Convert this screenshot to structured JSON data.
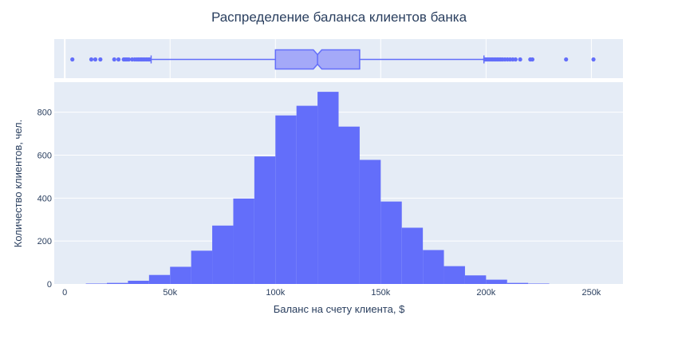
{
  "chart_data": {
    "type": "bar",
    "title": "Распределение баланса клиентов банка",
    "xlabel": "Баланс на счету клиента, $",
    "ylabel": "Количество клиентов, чел.",
    "xlim": [
      -5000,
      265000
    ],
    "ylim": [
      0,
      940
    ],
    "x_ticks": [
      {
        "value": 0,
        "label": "0"
      },
      {
        "value": 50000,
        "label": "50k"
      },
      {
        "value": 100000,
        "label": "100k"
      },
      {
        "value": 150000,
        "label": "150k"
      },
      {
        "value": 200000,
        "label": "200k"
      },
      {
        "value": 250000,
        "label": "250k"
      }
    ],
    "y_ticks": [
      {
        "value": 0,
        "label": "0"
      },
      {
        "value": 200,
        "label": "200"
      },
      {
        "value": 400,
        "label": "400"
      },
      {
        "value": 600,
        "label": "600"
      },
      {
        "value": 800,
        "label": "800"
      }
    ],
    "bin_width": 10000,
    "bins": [
      {
        "x0": 10000,
        "count": 2
      },
      {
        "x0": 20000,
        "count": 5
      },
      {
        "x0": 30000,
        "count": 15
      },
      {
        "x0": 40000,
        "count": 42
      },
      {
        "x0": 50000,
        "count": 80
      },
      {
        "x0": 60000,
        "count": 155
      },
      {
        "x0": 70000,
        "count": 272
      },
      {
        "x0": 80000,
        "count": 398
      },
      {
        "x0": 90000,
        "count": 594
      },
      {
        "x0": 100000,
        "count": 785
      },
      {
        "x0": 110000,
        "count": 830
      },
      {
        "x0": 120000,
        "count": 895
      },
      {
        "x0": 130000,
        "count": 733
      },
      {
        "x0": 140000,
        "count": 578
      },
      {
        "x0": 150000,
        "count": 384
      },
      {
        "x0": 160000,
        "count": 262
      },
      {
        "x0": 170000,
        "count": 158
      },
      {
        "x0": 180000,
        "count": 83
      },
      {
        "x0": 190000,
        "count": 40
      },
      {
        "x0": 200000,
        "count": 20
      },
      {
        "x0": 210000,
        "count": 5
      },
      {
        "x0": 220000,
        "count": 2
      }
    ],
    "box": {
      "q1": 100000,
      "median": 120000,
      "q3": 140000,
      "notch_low": 118000,
      "notch_high": 122000,
      "whisker_low": 41000,
      "whisker_high": 199000,
      "outliers": [
        3600,
        12600,
        14500,
        16900,
        23500,
        25500,
        28000,
        28700,
        29500,
        30400,
        32000,
        33200,
        34200,
        35000,
        35800,
        36500,
        37200,
        38000,
        38800,
        39600,
        40200,
        199500,
        200100,
        200800,
        201500,
        202300,
        203000,
        203800,
        204600,
        205400,
        206200,
        207000,
        207900,
        209000,
        210200,
        211400,
        212700,
        214000,
        216200,
        221000,
        222000,
        238000,
        251000
      ]
    },
    "grid": true,
    "legend": "none",
    "colors": {
      "bar": "#636efa",
      "box_fill": "#a4a9f8",
      "plot_bg": "#e5ecf6",
      "grid": "#ffffff",
      "text": "#2a3f5f",
      "tick_text": "#2a3f5f"
    }
  }
}
